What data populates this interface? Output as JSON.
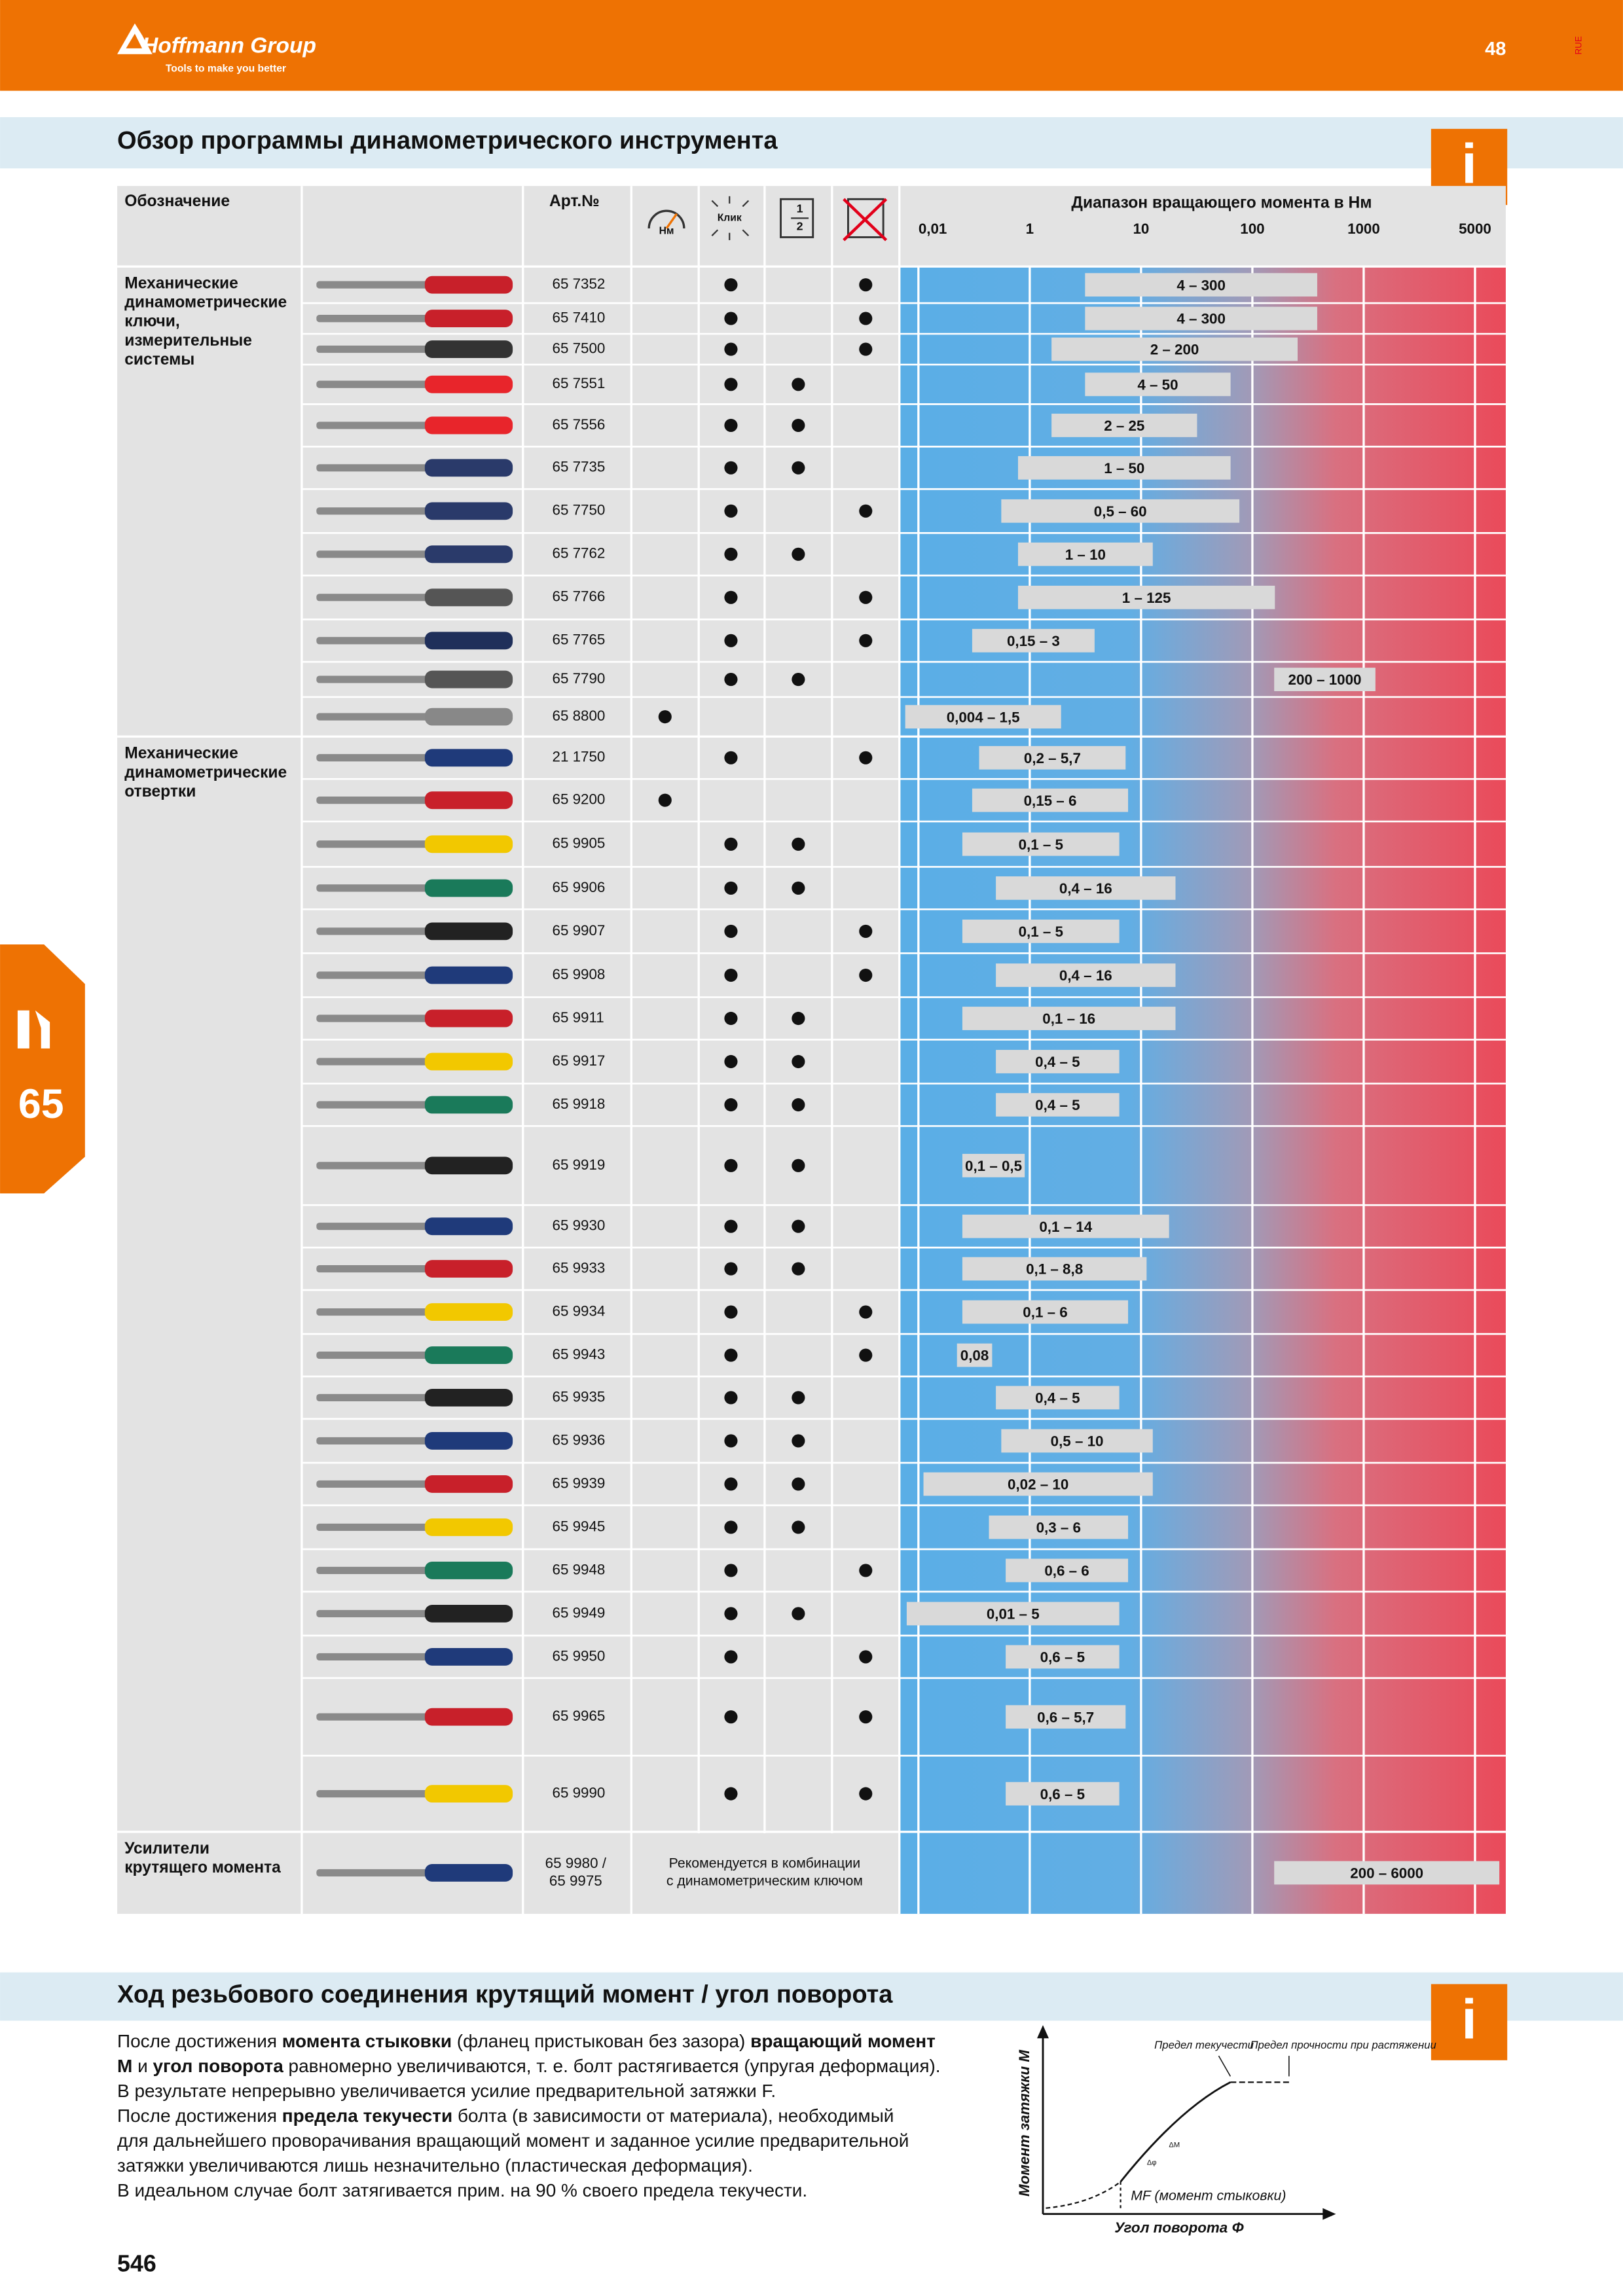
{
  "header": {
    "brand": "Hoffmann Group",
    "tagline": "Tools to make you better",
    "page_ref": "48",
    "code": "RUE"
  },
  "side_tab": {
    "number": "65"
  },
  "overview": {
    "title": "Обзор программы динамометрического инструмента",
    "columns": {
      "designation": "Обозначение",
      "article": "Арт.№",
      "nm_icon": "Нм",
      "click_icon": "Клик",
      "half_icon": [
        "1",
        "2"
      ],
      "range": "Диапазон вращающего момента в Нм"
    },
    "scale": {
      "ticks": [
        {
          "value": 0.01,
          "label": "0,01"
        },
        1,
        10,
        100,
        1000,
        5000
      ]
    },
    "groups": [
      {
        "name": [
          "Механические",
          "динамометрические",
          "ключи,",
          "измерительные",
          "системы"
        ],
        "rows": [
          {
            "art": "65 7352",
            "click": true,
            "cross": true,
            "from": 4,
            "to": 300,
            "label": "4 – 300"
          },
          {
            "art": "65 7410",
            "click": true,
            "cross": true,
            "from": 4,
            "to": 300,
            "label": "4 – 300"
          },
          {
            "art": "65 7500",
            "click": true,
            "cross": true,
            "from": 2,
            "to": 200,
            "label": "2 – 200"
          },
          {
            "art": "65 7551",
            "click": true,
            "half": true,
            "from": 4,
            "to": 50,
            "label": "4 – 50"
          },
          {
            "art": "65 7556",
            "click": true,
            "half": true,
            "from": 2,
            "to": 25,
            "label": "2 – 25"
          },
          {
            "art": "65 7735",
            "click": true,
            "half": true,
            "from": 1,
            "to": 50,
            "label": "1 – 50"
          },
          {
            "art": "65 7750",
            "click": true,
            "cross": true,
            "from": 0.5,
            "to": 60,
            "label": "0,5 – 60"
          },
          {
            "art": "65 7762",
            "click": true,
            "half": true,
            "from": 1,
            "to": 10,
            "label": "1 – 10"
          },
          {
            "art": "65 7766",
            "click": true,
            "cross": true,
            "from": 1,
            "to": 125,
            "label": "1 – 125"
          },
          {
            "art": "65 7765",
            "click": true,
            "cross": true,
            "from": 0.15,
            "to": 3,
            "label": "0,15 – 3"
          },
          {
            "art": "65 7790",
            "click": true,
            "half": true,
            "from": 200,
            "to": 1000,
            "label": "200 – 1000"
          },
          {
            "art": "65 8800",
            "nm": true,
            "from": 0.004,
            "to": 1.5,
            "label": "0,004 – 1,5"
          }
        ]
      },
      {
        "name": [
          "Механические",
          "динамометрические",
          "отвертки"
        ],
        "rows": [
          {
            "art": "21 1750",
            "click": true,
            "cross": true,
            "from": 0.2,
            "to": 5.7,
            "label": "0,2 – 5,7"
          },
          {
            "art": "65 9200",
            "nm": true,
            "from": 0.15,
            "to": 6,
            "label": "0,15 – 6"
          },
          {
            "art": "65 9905",
            "click": true,
            "half": true,
            "from": 0.1,
            "to": 5,
            "label": "0,1 – 5"
          },
          {
            "art": "65 9906",
            "click": true,
            "half": true,
            "from": 0.4,
            "to": 16,
            "label": "0,4 – 16"
          },
          {
            "art": "65 9907",
            "click": true,
            "cross": true,
            "from": 0.1,
            "to": 5,
            "label": "0,1 – 5"
          },
          {
            "art": "65 9908",
            "click": true,
            "cross": true,
            "from": 0.4,
            "to": 16,
            "label": "0,4 – 16"
          },
          {
            "art": "65 9911",
            "click": true,
            "half": true,
            "from": 0.1,
            "to": 16,
            "label": "0,1 – 16"
          },
          {
            "art": "65 9917",
            "click": true,
            "half": true,
            "from": 0.4,
            "to": 5,
            "label": "0,4 – 5"
          },
          {
            "art": "65 9918",
            "click": true,
            "half": true,
            "from": 0.4,
            "to": 5,
            "label": "0,4 – 5"
          },
          {
            "art": "65 9919",
            "click": true,
            "half": true,
            "from": 0.1,
            "to": 0.5,
            "label": "0,1 – 0,5"
          },
          {
            "art": "65 9930",
            "click": true,
            "half": true,
            "from": 0.1,
            "to": 14,
            "label": "0,1 – 14"
          },
          {
            "art": "65 9933",
            "click": true,
            "half": true,
            "from": 0.1,
            "to": 8.8,
            "label": "0,1 – 8,8"
          },
          {
            "art": "65 9934",
            "click": true,
            "cross": true,
            "from": 0.1,
            "to": 6,
            "label": "0,1 – 6"
          },
          {
            "art": "65 9943",
            "click": true,
            "cross": true,
            "from": 0.08,
            "label": "0,08"
          },
          {
            "art": "65 9935",
            "click": true,
            "half": true,
            "from": 0.4,
            "to": 5,
            "label": "0,4 – 5"
          },
          {
            "art": "65 9936",
            "click": true,
            "half": true,
            "from": 0.5,
            "to": 10,
            "label": "0,5 – 10"
          },
          {
            "art": "65 9939",
            "click": true,
            "half": true,
            "from": 0.02,
            "to": 10,
            "label": "0,02 – 10"
          },
          {
            "art": "65 9945",
            "click": true,
            "half": true,
            "from": 0.3,
            "to": 6,
            "label": "0,3 – 6"
          },
          {
            "art": "65 9948",
            "click": true,
            "cross": true,
            "from": 0.6,
            "to": 6,
            "label": "0,6 – 6"
          },
          {
            "art": "65 9949",
            "click": true,
            "half": true,
            "from": 0.01,
            "to": 5,
            "label": "0,01 – 5"
          },
          {
            "art": "65 9950",
            "click": true,
            "cross": true,
            "from": 0.6,
            "to": 5,
            "label": "0,6 – 5"
          },
          {
            "art": "65 9965",
            "click": true,
            "cross": true,
            "from": 0.6,
            "to": 5.7,
            "label": "0,6 – 5,7"
          },
          {
            "art": "65 9990",
            "click": true,
            "cross": true,
            "from": 0.6,
            "to": 5,
            "label": "0,6 – 5"
          }
        ]
      },
      {
        "name": [
          "Усилители",
          "крутящего момента"
        ],
        "rows": [
          {
            "art": [
              "65 9980 /",
              "65 9975"
            ],
            "note": [
              "Рекомендуется в комбинации",
              "с динамометрическим ключом"
            ],
            "from": 200,
            "to": 6000,
            "label": "200 – 6000"
          }
        ]
      }
    ]
  },
  "thread": {
    "title": "Ход резьбового соединения крутящий момент / угол поворота",
    "lines": [
      [
        {
          "t": "После достижения "
        },
        {
          "t": "момента стыковки",
          "b": true
        },
        {
          "t": " (фланец пристыкован без зазора) "
        },
        {
          "t": "вращающий момент",
          "b": true
        }
      ],
      [
        {
          "t": "M",
          "b": true
        },
        {
          "t": " и "
        },
        {
          "t": "угол поворота",
          "b": true
        },
        {
          "t": " равномерно увеличиваются, т. е. болт растягивается (упругая деформация)."
        }
      ],
      [
        {
          "t": "В результате непрерывно увеличивается усилие предварительной затяжки F."
        }
      ],
      [
        {
          "t": "После достижения "
        },
        {
          "t": "предела текучести",
          "b": true
        },
        {
          "t": " болта (в зависимости от материала), необходимый"
        }
      ],
      [
        {
          "t": "для дальнейшего проворачивания вращающий момент и заданное усилие предварительной"
        }
      ],
      [
        {
          "t": "затяжки увеличиваются лишь незначительно (пластическая деформация)."
        }
      ],
      [
        {
          "t": "В идеальном случае болт затягивается прим. на 90 % своего предела текучести."
        }
      ]
    ],
    "diagram": {
      "y_label": "Момент затяжки M",
      "x_label": "Угол поворота Φ",
      "yield": "Предел текучести",
      "tensile": "Предел прочности при растяжении",
      "mf": "MF (момент стыковки)",
      "dm": "ΔM",
      "dphi": "Δφ"
    }
  },
  "footer": {
    "page": "546"
  }
}
